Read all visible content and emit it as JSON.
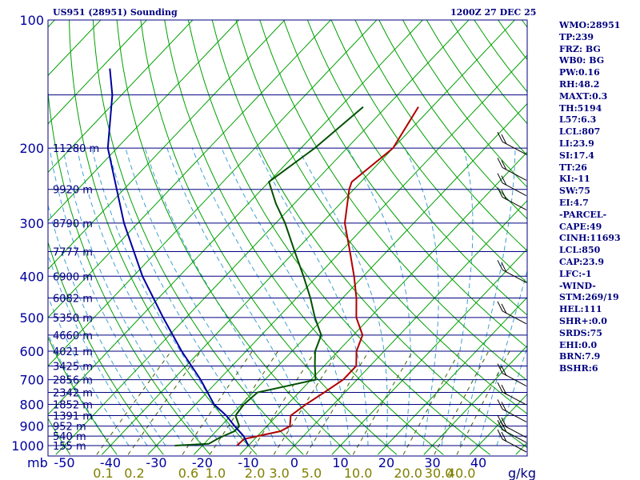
{
  "header": {
    "station": "US951 (28951) Sounding",
    "time": "1200Z 27 DEC 25"
  },
  "chart_data": {
    "type": "skew-t log-p sounding",
    "title": "US951 (28951) Sounding",
    "valid_time": "1200Z 27 DEC 25",
    "pressure_axis": {
      "label": "mb",
      "range_hpa": [
        1000,
        100
      ],
      "ticks": [
        "100",
        "200",
        "300",
        "400",
        "500",
        "600",
        "700",
        "800",
        "900",
        "1000"
      ]
    },
    "temperature_axis": {
      "unit": "°C",
      "range": [
        -50,
        50
      ],
      "ticks": [
        "-50",
        "-40",
        "-30",
        "-20",
        "-10",
        "0",
        "10",
        "20",
        "30",
        "40"
      ]
    },
    "mixing_ratio_axis": {
      "unit": "g/kg",
      "ticks": [
        "0.1",
        "0.2",
        "0.6",
        "1.0",
        "2.0",
        "3.0",
        "5.0",
        "10.0",
        "20.0",
        "30.0",
        "40.0"
      ]
    },
    "height_labels": [
      {
        "p": 1000,
        "label": "155 m"
      },
      {
        "p": 950,
        "label": "540 m"
      },
      {
        "p": 900,
        "label": "952 m"
      },
      {
        "p": 850,
        "label": "1391 m"
      },
      {
        "p": 800,
        "label": "1852 m"
      },
      {
        "p": 750,
        "label": "2342 m"
      },
      {
        "p": 700,
        "label": "2856 m"
      },
      {
        "p": 650,
        "label": "3425 m"
      },
      {
        "p": 600,
        "label": "4021 m"
      },
      {
        "p": 550,
        "label": "4660 m"
      },
      {
        "p": 500,
        "label": "5350 m"
      },
      {
        "p": 450,
        "label": "6082 m"
      },
      {
        "p": 400,
        "label": "6900 m"
      },
      {
        "p": 350,
        "label": "7777 m"
      },
      {
        "p": 300,
        "label": "8790 m"
      },
      {
        "p": 250,
        "label": "9920 m"
      },
      {
        "p": 200,
        "label": "11280 m"
      }
    ],
    "series": [
      {
        "name": "Temperature",
        "color": "#b00000",
        "points": [
          {
            "p": 1000,
            "t": -12.5
          },
          {
            "p": 965,
            "t": -12.3
          },
          {
            "p": 925,
            "t": -6
          },
          {
            "p": 900,
            "t": -5
          },
          {
            "p": 850,
            "t": -7
          },
          {
            "p": 800,
            "t": -6
          },
          {
            "p": 750,
            "t": -4.5
          },
          {
            "p": 700,
            "t": -3
          },
          {
            "p": 650,
            "t": -3
          },
          {
            "p": 600,
            "t": -6
          },
          {
            "p": 550,
            "t": -8
          },
          {
            "p": 500,
            "t": -13
          },
          {
            "p": 450,
            "t": -17
          },
          {
            "p": 400,
            "t": -22
          },
          {
            "p": 350,
            "t": -28
          },
          {
            "p": 300,
            "t": -35
          },
          {
            "p": 250,
            "t": -41
          },
          {
            "p": 240,
            "t": -42
          },
          {
            "p": 200,
            "t": -40
          },
          {
            "p": 160,
            "t": -43
          }
        ]
      },
      {
        "name": "Dewpoint",
        "color": "#005000",
        "points": [
          {
            "p": 1000,
            "t": -26
          },
          {
            "p": 990,
            "t": -19
          },
          {
            "p": 960,
            "t": -18
          },
          {
            "p": 925,
            "t": -16
          },
          {
            "p": 900,
            "t": -16
          },
          {
            "p": 850,
            "t": -19
          },
          {
            "p": 800,
            "t": -19.5
          },
          {
            "p": 750,
            "t": -19
          },
          {
            "p": 700,
            "t": -9
          },
          {
            "p": 650,
            "t": -12
          },
          {
            "p": 600,
            "t": -15
          },
          {
            "p": 550,
            "t": -17
          },
          {
            "p": 500,
            "t": -22
          },
          {
            "p": 450,
            "t": -27
          },
          {
            "p": 400,
            "t": -33
          },
          {
            "p": 350,
            "t": -40
          },
          {
            "p": 300,
            "t": -48
          },
          {
            "p": 270,
            "t": -54
          },
          {
            "p": 240,
            "t": -60
          },
          {
            "p": 200,
            "t": -57
          },
          {
            "p": 160,
            "t": -55
          }
        ]
      },
      {
        "name": "Parcel",
        "color": "#0000a0",
        "points": [
          {
            "p": 1000,
            "t": -10
          },
          {
            "p": 950,
            "t": -13
          },
          {
            "p": 900,
            "t": -17
          },
          {
            "p": 850,
            "t": -21
          },
          {
            "p": 800,
            "t": -26
          },
          {
            "p": 700,
            "t": -34
          },
          {
            "p": 600,
            "t": -44
          },
          {
            "p": 500,
            "t": -55
          },
          {
            "p": 400,
            "t": -68
          },
          {
            "p": 300,
            "t": -83
          },
          {
            "p": 200,
            "t": -102
          },
          {
            "p": 150,
            "t": -112
          },
          {
            "p": 130,
            "t": -118
          }
        ]
      }
    ],
    "wind_barbs_hpa": [
      1000,
      950,
      925,
      850,
      775,
      700,
      500,
      400,
      270,
      250,
      230,
      200
    ]
  },
  "indices": [
    "WMO:28951",
    "TP:239",
    "FRZ: BG",
    "WB0: BG",
    "PW:0.16",
    "RH:48.2",
    "MAXT:0.3",
    "TH:5194",
    "L57:6.3",
    "LCL:807",
    "LI:23.9",
    "SI:17.4",
    "TT:26",
    "KI:-11",
    "SW:75",
    "EI:4.7",
    "-PARCEL-",
    "CAPE:49",
    "CINH:11693",
    "LCL:850",
    "CAP:23.9",
    "LFC:-1",
    "-WIND-",
    "STM:269/19",
    "HEL:111",
    "SHR+:0.0",
    "SRDS:75",
    "EHI:0.0",
    "BRN:7.9",
    "BSHR:6"
  ],
  "colors": {
    "frame": "#000080",
    "isobar": "#000080",
    "isotherm": "#00a000",
    "dry_adiabat": "#00a000",
    "moist_adiabat": "#40a0d0",
    "mixing_ratio": "#406000",
    "axis_text": "#0000a0",
    "mixing_text": "#808000",
    "temperature": "#b00000",
    "dewpoint": "#005000",
    "parcel": "#0000a0"
  }
}
